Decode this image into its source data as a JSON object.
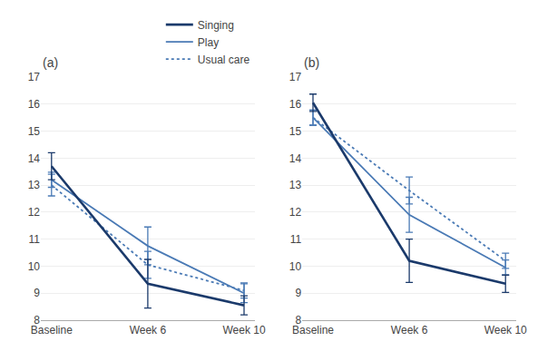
{
  "chart_data": [
    {
      "type": "line",
      "title": "(a)",
      "categories": [
        "Baseline",
        "Week 6",
        "Week 10"
      ],
      "series": [
        {
          "name": "Usual care",
          "color": "#4a7ab5",
          "line_style": "dotted",
          "values": [
            13.0,
            10.05,
            9.1
          ],
          "errors": [
            0.4,
            0.5,
            0.28
          ]
        },
        {
          "name": "Play",
          "color": "#4a7ab5",
          "line_style": "solid",
          "values": [
            13.2,
            10.75,
            9.0
          ],
          "errors": [
            0.28,
            0.7,
            0.35
          ]
        },
        {
          "name": "Singing",
          "color": "#1b3a6b",
          "line_style": "solid",
          "values": [
            13.7,
            9.35,
            8.55
          ],
          "errors": [
            0.5,
            0.9,
            0.35
          ]
        }
      ],
      "ylim": [
        8,
        17
      ],
      "yticks": [
        8,
        9,
        10,
        11,
        12,
        13,
        14,
        15,
        16,
        17
      ],
      "grid": true,
      "legend": "top"
    },
    {
      "type": "line",
      "title": "(b)",
      "categories": [
        "Baseline",
        "Week 6",
        "Week 10"
      ],
      "series": [
        {
          "name": "Usual care",
          "color": "#4a7ab5",
          "line_style": "dotted",
          "values": [
            15.5,
            12.8,
            10.2
          ],
          "errors": [
            0.28,
            0.5,
            0.28
          ]
        },
        {
          "name": "Play",
          "color": "#4a7ab5",
          "line_style": "solid",
          "values": [
            15.5,
            11.9,
            9.95
          ],
          "errors": [
            0.28,
            0.65,
            0.28
          ]
        },
        {
          "name": "Singing",
          "color": "#1b3a6b",
          "line_style": "solid",
          "values": [
            16.05,
            10.2,
            9.35
          ],
          "errors": [
            0.32,
            0.8,
            0.32
          ]
        }
      ],
      "ylim": [
        8,
        17
      ],
      "yticks": [
        8,
        9,
        10,
        11,
        12,
        13,
        14,
        15,
        16,
        17
      ],
      "grid": true
    }
  ]
}
